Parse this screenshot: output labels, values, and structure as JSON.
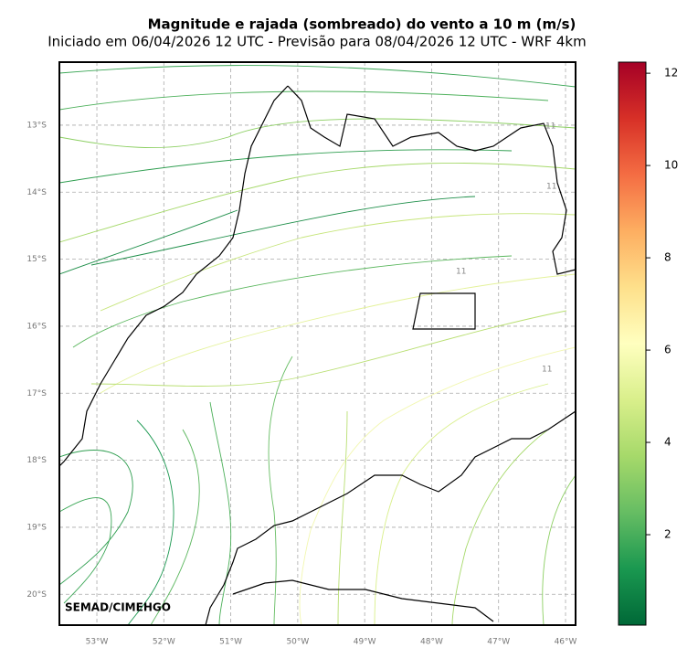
{
  "title": "Magnitude e rajada (sombreado) do vento a 10 m (m/s)",
  "subtitle": "Iniciado em 06/04/2026 12 UTC - Previsão para 08/04/2026 12 UTC - WRF 4km",
  "map": {
    "lonlim": [
      -53.56,
      -45.85
    ],
    "latlim": [
      -20.46,
      -12.06
    ],
    "grid": true,
    "lonticks": [
      {
        "value": -53,
        "label": "53°W"
      },
      {
        "value": -52,
        "label": "52°W"
      },
      {
        "value": -51,
        "label": "51°W"
      },
      {
        "value": -50,
        "label": "50°W"
      },
      {
        "value": -49,
        "label": "49°W"
      },
      {
        "value": -48,
        "label": "48°W"
      },
      {
        "value": -47,
        "label": "47°W"
      },
      {
        "value": -46,
        "label": "46°W"
      }
    ],
    "latticks": [
      {
        "value": -13,
        "label": "13°S"
      },
      {
        "value": -14,
        "label": "14°S"
      },
      {
        "value": -15,
        "label": "15°S"
      },
      {
        "value": -16,
        "label": "16°S"
      },
      {
        "value": -17,
        "label": "17°S"
      },
      {
        "value": -18,
        "label": "18°S"
      },
      {
        "value": -19,
        "label": "19°S"
      },
      {
        "value": -20,
        "label": "20°S"
      }
    ],
    "contour_labels": [
      "11",
      "11",
      "11",
      "11"
    ]
  },
  "colorbar": {
    "lim": [
      0.04,
      12.24
    ],
    "ticks": [
      2,
      4,
      6,
      8,
      10,
      12
    ]
  },
  "credit": "SEMAD/CIMEHGO"
}
